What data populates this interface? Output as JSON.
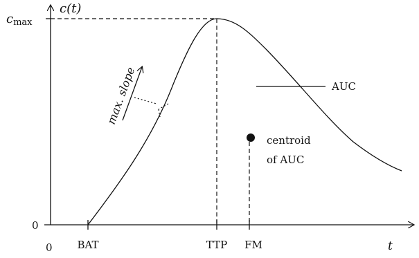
{
  "diagram": {
    "y_axis_label": "c(t)",
    "x_axis_label": "t",
    "c_max_label": "c",
    "c_max_sub": "max",
    "y_origin_label": "0",
    "x_origin_label": "0",
    "x_ticks": [
      "BAT",
      "TTP",
      "FM"
    ],
    "slope_label": "max. slope",
    "auc_label": "AUC",
    "centroid_label_line1": "centroid",
    "centroid_label_line2": "of AUC"
  }
}
